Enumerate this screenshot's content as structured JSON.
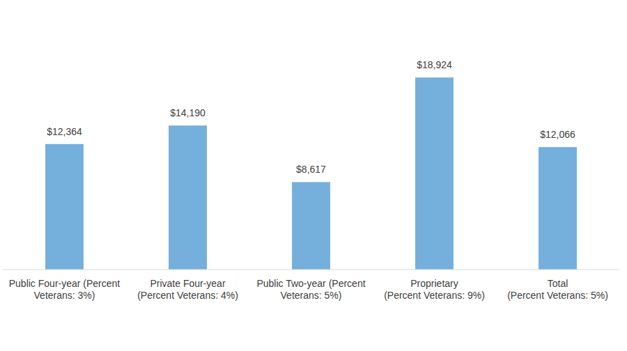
{
  "chart_data": {
    "type": "bar",
    "categories": [
      "Public Four-year (Percent\nVeterans: 3%)",
      "Private Four-year\n(Percent Veterans: 4%)",
      "Public Two-year (Percent\nVeterans: 5%)",
      "Proprietary\n(Percent Veterans: 9%)",
      "Total\n(Percent Veterans: 5%)"
    ],
    "values": [
      12364,
      14190,
      8617,
      18924,
      12066
    ],
    "value_labels": [
      "$12,364",
      "$14,190",
      "$8,617",
      "$18,924",
      "$12,066"
    ],
    "color": "#75afdc",
    "ylim": [
      0,
      20000
    ],
    "grid": false,
    "data_labels": true,
    "tick_labels": "x"
  }
}
